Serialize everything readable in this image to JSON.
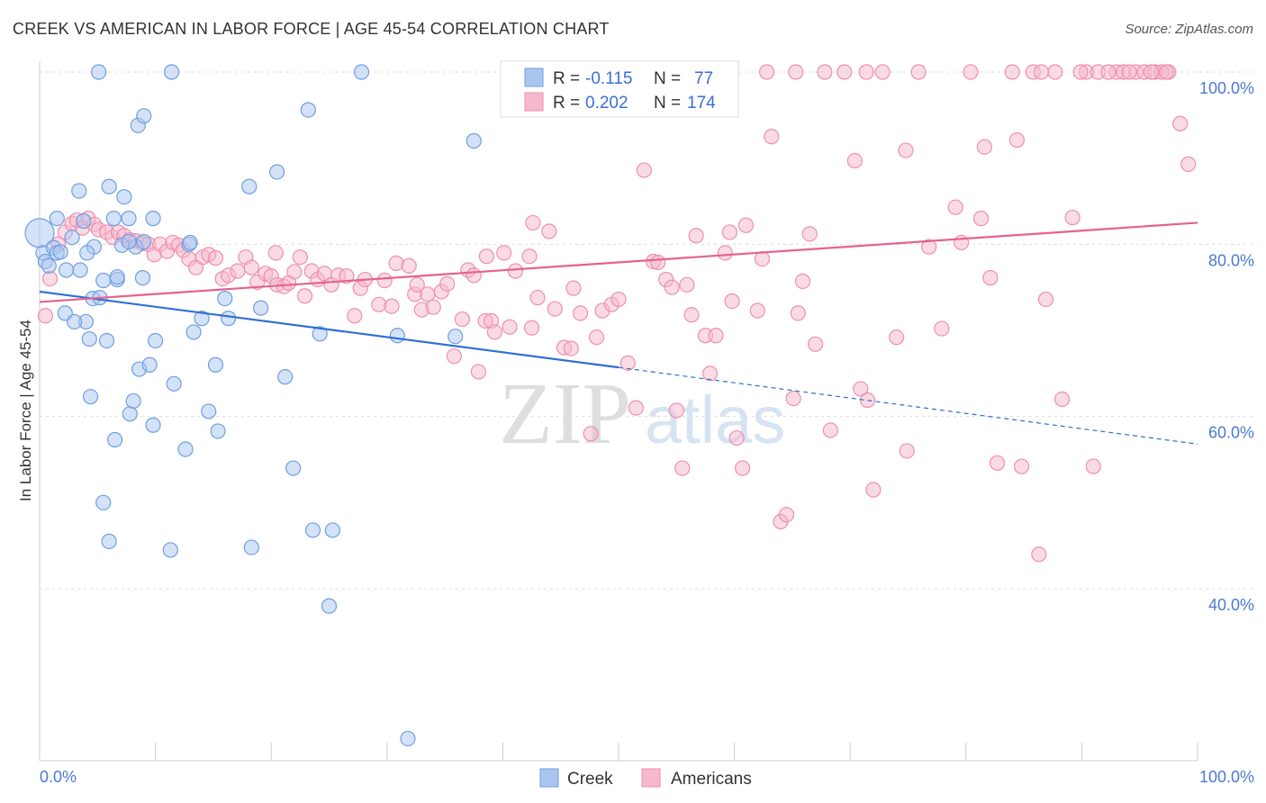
{
  "header": {
    "title": "CREEK VS AMERICAN IN LABOR FORCE | AGE 45-54 CORRELATION CHART",
    "source": "Source: ZipAtlas.com"
  },
  "watermark": {
    "zip": "ZIP",
    "atlas": "atlas"
  },
  "legend": {
    "r_label": "R =",
    "n_label": "N =",
    "creek": {
      "r": "-0.115",
      "n": "77"
    },
    "americans": {
      "r": "0.202",
      "n": "174"
    }
  },
  "bottom_legend": {
    "creek": "Creek",
    "americans": "Americans"
  },
  "chart_data": {
    "type": "scatter",
    "title": "CREEK VS AMERICAN IN LABOR FORCE | AGE 45-54 CORRELATION CHART",
    "xlabel": "",
    "ylabel": "In Labor Force | Age 45-54",
    "xlim": [
      0,
      100
    ],
    "ylim": [
      20,
      102
    ],
    "x_tick_labels": [
      "0.0%",
      "100.0%"
    ],
    "y_ticks": [
      40,
      60,
      80,
      100
    ],
    "y_tick_labels": [
      "40.0%",
      "60.0%",
      "80.0%",
      "100.0%"
    ],
    "colors": {
      "creek_fill": "#a9c6f0",
      "creek_stroke": "#6f9fe0",
      "creek_line": "#2e6fd3",
      "americans_fill": "#f6b8cc",
      "americans_stroke": "#ee8fae",
      "americans_line": "#e5628e"
    },
    "series": [
      {
        "name": "Creek",
        "r": -0.115,
        "n": 77,
        "trend": {
          "x": [
            0,
            50
          ],
          "y": [
            74.5,
            65.7
          ],
          "dashed_to": [
            100,
            56.8
          ]
        },
        "points": [
          [
            0,
            81.3
          ],
          [
            0.3,
            79
          ],
          [
            0.5,
            78
          ],
          [
            0.8,
            77.5
          ],
          [
            1.2,
            79.6
          ],
          [
            1.5,
            79
          ],
          [
            1.8,
            79.1
          ],
          [
            2.3,
            77
          ],
          [
            2.8,
            80.8
          ],
          [
            3.4,
            86.2
          ],
          [
            3.8,
            82.7
          ],
          [
            4,
            71
          ],
          [
            4.3,
            69
          ],
          [
            4.4,
            62.3
          ],
          [
            4.6,
            73.7
          ],
          [
            4.7,
            79.7
          ],
          [
            5.1,
            100
          ],
          [
            5.5,
            75.8
          ],
          [
            5.8,
            68.8
          ],
          [
            6,
            86.7
          ],
          [
            6.4,
            83
          ],
          [
            6.5,
            57.3
          ],
          [
            6.7,
            75.9
          ],
          [
            7.1,
            79.9
          ],
          [
            7.3,
            85.5
          ],
          [
            7.7,
            83
          ],
          [
            7.8,
            60.3
          ],
          [
            8.1,
            61.8
          ],
          [
            8.5,
            93.8
          ],
          [
            8.6,
            65.5
          ],
          [
            8.9,
            76.1
          ],
          [
            9,
            94.9
          ],
          [
            9.5,
            66
          ],
          [
            9.8,
            83
          ],
          [
            9.8,
            59
          ],
          [
            10,
            68.8
          ],
          [
            11.4,
            100
          ],
          [
            11.6,
            63.8
          ],
          [
            12.6,
            56.2
          ],
          [
            12.9,
            80
          ],
          [
            13.3,
            69.8
          ],
          [
            14,
            71.4
          ],
          [
            14.6,
            60.6
          ],
          [
            15.2,
            66
          ],
          [
            15.4,
            58.3
          ],
          [
            16,
            73.7
          ],
          [
            16.3,
            71.4
          ],
          [
            18.1,
            86.7
          ],
          [
            18.3,
            44.8
          ],
          [
            19.1,
            72.6
          ],
          [
            20.5,
            88.4
          ],
          [
            21.2,
            64.6
          ],
          [
            21.9,
            54
          ],
          [
            23.2,
            95.6
          ],
          [
            23.6,
            46.8
          ],
          [
            24.2,
            69.6
          ],
          [
            25,
            38
          ],
          [
            25.3,
            46.8
          ],
          [
            27.8,
            100
          ],
          [
            30.9,
            69.4
          ],
          [
            31.8,
            22.6
          ],
          [
            35.9,
            69.3
          ],
          [
            37.5,
            92
          ],
          [
            1.5,
            83
          ],
          [
            2.2,
            72
          ],
          [
            3,
            71
          ],
          [
            5.5,
            50
          ],
          [
            6,
            45.5
          ],
          [
            11.3,
            44.5
          ],
          [
            3.5,
            77
          ],
          [
            8.3,
            79.7
          ],
          [
            7.7,
            80.3
          ],
          [
            13,
            80.2
          ],
          [
            6.7,
            76.2
          ],
          [
            9,
            80.3
          ],
          [
            5.2,
            73.8
          ],
          [
            4.1,
            79
          ]
        ]
      },
      {
        "name": "Americans",
        "r": 0.202,
        "n": 174,
        "trend": {
          "x": [
            0,
            100
          ],
          "y": [
            73.3,
            82.5
          ]
        },
        "points": [
          [
            0.5,
            71.7
          ],
          [
            0.9,
            76
          ],
          [
            1.6,
            80
          ],
          [
            2.2,
            81.4
          ],
          [
            2.8,
            82.4
          ],
          [
            3.2,
            82.8
          ],
          [
            3.7,
            81.9
          ],
          [
            4.2,
            83
          ],
          [
            4.7,
            82.3
          ],
          [
            5.1,
            81.7
          ],
          [
            5.8,
            81.4
          ],
          [
            6.3,
            80.8
          ],
          [
            6.8,
            81.4
          ],
          [
            7.3,
            81
          ],
          [
            7.8,
            80.5
          ],
          [
            8.3,
            80.4
          ],
          [
            8.9,
            80.1
          ],
          [
            9.4,
            80
          ],
          [
            9.9,
            78.8
          ],
          [
            10.4,
            80
          ],
          [
            11,
            79.2
          ],
          [
            11.5,
            80.2
          ],
          [
            12,
            79.9
          ],
          [
            12.4,
            79.3
          ],
          [
            12.9,
            78.3
          ],
          [
            13.5,
            77.3
          ],
          [
            14.1,
            78.5
          ],
          [
            14.6,
            78.8
          ],
          [
            15.2,
            78.4
          ],
          [
            15.8,
            76
          ],
          [
            16.3,
            76.4
          ],
          [
            17.1,
            76.9
          ],
          [
            17.8,
            78.5
          ],
          [
            18.3,
            77.3
          ],
          [
            18.8,
            75.6
          ],
          [
            19.5,
            76.6
          ],
          [
            20,
            76.3
          ],
          [
            20.5,
            75.3
          ],
          [
            21.1,
            75.1
          ],
          [
            21.5,
            75.5
          ],
          [
            22,
            76.8
          ],
          [
            22.5,
            78.5
          ],
          [
            22.9,
            74
          ],
          [
            23.5,
            76.9
          ],
          [
            24,
            75.9
          ],
          [
            24.6,
            76.6
          ],
          [
            25.2,
            75.3
          ],
          [
            25.8,
            76.4
          ],
          [
            26.5,
            76.3
          ],
          [
            27.2,
            71.7
          ],
          [
            27.7,
            74.9
          ],
          [
            28.1,
            75.9
          ],
          [
            29.3,
            73
          ],
          [
            29.8,
            75.8
          ],
          [
            30.4,
            72.8
          ],
          [
            30.8,
            77.8
          ],
          [
            31.9,
            77.5
          ],
          [
            32.4,
            74.2
          ],
          [
            32.6,
            75.3
          ],
          [
            33,
            72.4
          ],
          [
            33.5,
            74.2
          ],
          [
            34,
            72.7
          ],
          [
            34.7,
            74.5
          ],
          [
            35.2,
            75.4
          ],
          [
            35.8,
            67
          ],
          [
            36.5,
            71.3
          ],
          [
            37,
            77
          ],
          [
            37.5,
            76.4
          ],
          [
            37.9,
            65.2
          ],
          [
            38.5,
            71.1
          ],
          [
            39,
            71.1
          ],
          [
            39.3,
            69.8
          ],
          [
            40.1,
            79
          ],
          [
            40.6,
            70.4
          ],
          [
            41.1,
            76.9
          ],
          [
            42.3,
            78.6
          ],
          [
            42.6,
            82.5
          ],
          [
            43,
            73.8
          ],
          [
            44,
            81.5
          ],
          [
            44.5,
            72.5
          ],
          [
            45.3,
            68
          ],
          [
            45.9,
            67.9
          ],
          [
            46.1,
            74.9
          ],
          [
            46.7,
            72
          ],
          [
            47.6,
            58
          ],
          [
            48.1,
            69.2
          ],
          [
            48.6,
            72.3
          ],
          [
            49.4,
            73
          ],
          [
            50,
            73.6
          ],
          [
            50.8,
            66.2
          ],
          [
            51.5,
            61
          ],
          [
            52.2,
            88.6
          ],
          [
            53,
            78
          ],
          [
            53.4,
            77.9
          ],
          [
            54.1,
            75.9
          ],
          [
            54.6,
            75
          ],
          [
            55,
            60.7
          ],
          [
            55.5,
            54
          ],
          [
            55.9,
            75.3
          ],
          [
            56.3,
            71.8
          ],
          [
            56.7,
            81
          ],
          [
            57.5,
            69.4
          ],
          [
            57.9,
            65
          ],
          [
            58.4,
            69.4
          ],
          [
            59.2,
            79
          ],
          [
            59.6,
            81.4
          ],
          [
            60.2,
            57.5
          ],
          [
            60.7,
            54
          ],
          [
            61,
            82.2
          ],
          [
            62,
            72.3
          ],
          [
            62.4,
            78.3
          ],
          [
            63.2,
            92.5
          ],
          [
            64,
            47.8
          ],
          [
            64.5,
            48.6
          ],
          [
            65.1,
            62.1
          ],
          [
            65.5,
            72
          ],
          [
            65.9,
            75.7
          ],
          [
            66.5,
            81.2
          ],
          [
            67,
            68.4
          ],
          [
            68.3,
            58.4
          ],
          [
            69.5,
            100
          ],
          [
            70.4,
            89.7
          ],
          [
            70.9,
            63.2
          ],
          [
            71.5,
            61.9
          ],
          [
            72,
            51.5
          ],
          [
            72.8,
            100
          ],
          [
            74,
            69.2
          ],
          [
            74.8,
            90.9
          ],
          [
            74.9,
            56
          ],
          [
            75.9,
            100
          ],
          [
            76.8,
            79.7
          ],
          [
            77.9,
            70.2
          ],
          [
            79.1,
            84.3
          ],
          [
            79.6,
            80.2
          ],
          [
            80.4,
            100
          ],
          [
            81.3,
            83
          ],
          [
            81.6,
            91.3
          ],
          [
            82.1,
            76.1
          ],
          [
            82.7,
            54.6
          ],
          [
            84,
            100
          ],
          [
            84.4,
            92.1
          ],
          [
            84.8,
            54.2
          ],
          [
            85.8,
            100
          ],
          [
            86.3,
            44
          ],
          [
            86.9,
            73.6
          ],
          [
            87.7,
            100
          ],
          [
            88.3,
            62
          ],
          [
            89.2,
            83.1
          ],
          [
            90.4,
            100
          ],
          [
            91,
            54.2
          ],
          [
            91.4,
            100
          ],
          [
            93,
            100
          ],
          [
            93.6,
            100
          ],
          [
            94.7,
            100
          ],
          [
            95.4,
            100
          ],
          [
            96.3,
            100
          ],
          [
            96.9,
            100
          ],
          [
            97.5,
            100
          ],
          [
            98.5,
            94
          ],
          [
            99.2,
            89.3
          ],
          [
            86.5,
            100
          ],
          [
            89.9,
            100
          ],
          [
            92.3,
            100
          ],
          [
            94.1,
            100
          ],
          [
            96,
            100
          ],
          [
            97.3,
            100
          ],
          [
            62.8,
            100
          ],
          [
            65.3,
            100
          ],
          [
            67.8,
            100
          ],
          [
            71.4,
            100
          ],
          [
            59.8,
            73.4
          ],
          [
            42.5,
            70.3
          ],
          [
            38.6,
            78.6
          ],
          [
            20.4,
            79
          ]
        ]
      }
    ]
  }
}
